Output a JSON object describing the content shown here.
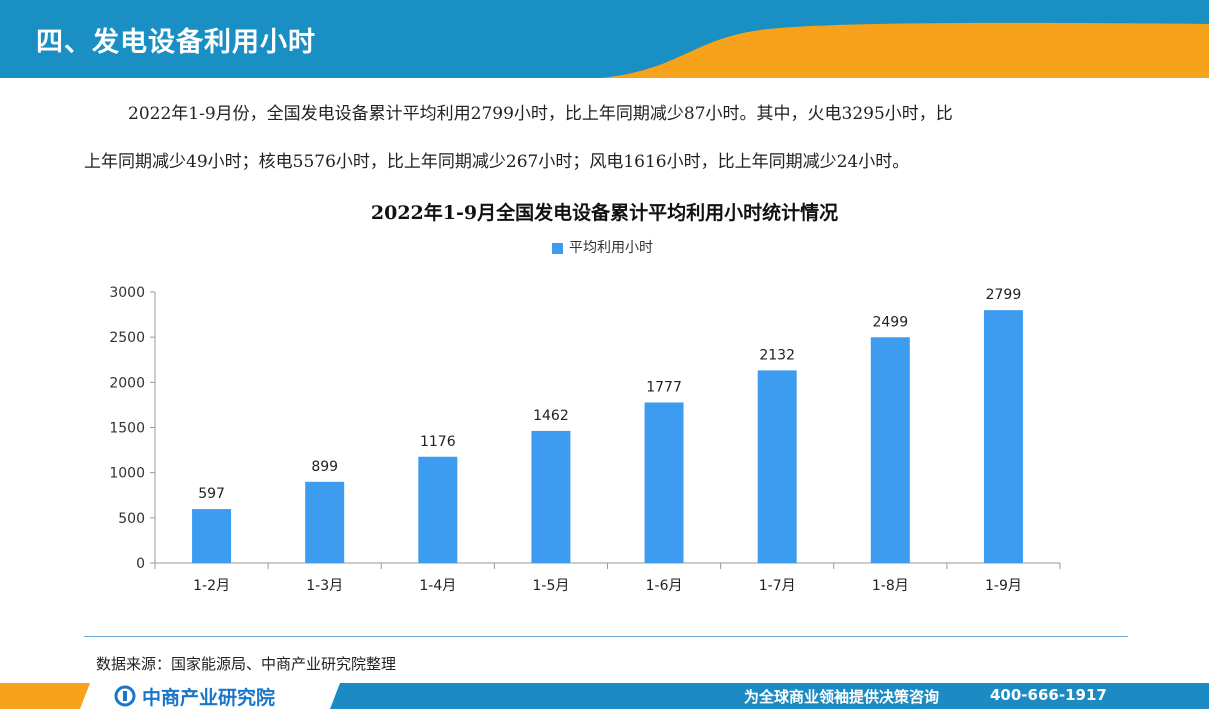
{
  "header": {
    "title": "四、发电设备利用小时"
  },
  "paragraph": {
    "line1": "2022年1-9月份，全国发电设备累计平均利用2799小时，比上年同期减少87小时。其中，火电3295小时，比",
    "line2": "上年同期减少49小时；核电5576小时，比上年同期减少267小时；风电1616小时，比上年同期减少24小时。"
  },
  "chart_data": {
    "type": "bar",
    "title": "2022年1-9月全国发电设备累计平均利用小时统计情况",
    "categories": [
      "1-2月",
      "1-3月",
      "1-4月",
      "1-5月",
      "1-6月",
      "1-7月",
      "1-8月",
      "1-9月"
    ],
    "series": [
      {
        "name": "平均利用小时",
        "values": [
          597,
          899,
          1176,
          1462,
          1777,
          2132,
          2499,
          2799
        ]
      }
    ],
    "ylim": [
      0,
      3000
    ],
    "yticks": [
      0,
      500,
      1000,
      1500,
      2000,
      2500,
      3000
    ],
    "grid": false,
    "legend_position": "top-center",
    "bar_color": "#3d9cf0",
    "data_labels": true
  },
  "footer": {
    "source": "数据来源：国家能源局、中商产业研究院整理",
    "brand": "中商产业研究院",
    "slogan": "为全球商业领袖提供决策咨询",
    "phone": "400-666-1917"
  },
  "colors": {
    "header_blue": "#1a8fc3",
    "accent_orange": "#f6a21b",
    "footer_blue": "#1c8bc4"
  }
}
